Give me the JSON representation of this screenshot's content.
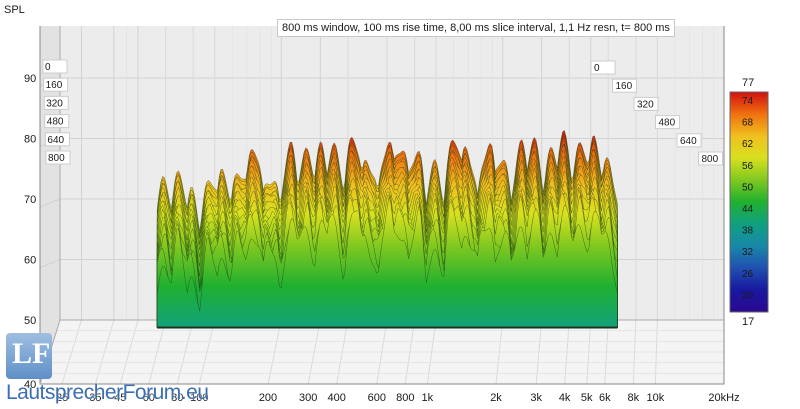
{
  "chart_data": {
    "type": "waterfall",
    "title": "800 ms window, 100 ms rise time, 8,00 ms slice interval, 1,1 Hz resn, t= 800 ms",
    "ylabel": "SPL",
    "xunit": "kHz",
    "yticks": [
      "90",
      "80",
      "70",
      "60",
      "50",
      "40"
    ],
    "ylim": [
      40,
      95
    ],
    "xticks": [
      "25",
      "35",
      "45",
      "60",
      "80",
      "100",
      "200",
      "300",
      "400",
      "600",
      "800",
      "1k",
      "2k",
      "3k",
      "4k",
      "5k",
      "6k",
      "8k",
      "10k",
      "20kHz"
    ],
    "time_ticks_left": [
      "0",
      "160",
      "320",
      "480",
      "640",
      "800"
    ],
    "time_ticks_right": [
      "0",
      "160",
      "320",
      "480",
      "640",
      "800"
    ],
    "colorbar": {
      "max_label": "77",
      "min_label": "17",
      "ticks": [
        "74",
        "68",
        "62",
        "56",
        "50",
        "44",
        "38",
        "32",
        "26",
        "20"
      ],
      "colors": [
        "#d01010",
        "#f07010",
        "#f0c020",
        "#d8e020",
        "#80c820",
        "#20b030",
        "#10a080",
        "#1888a8",
        "#2050b0",
        "#1818a0",
        "#2a0890"
      ]
    },
    "freq_range_hz": [
      20,
      20000
    ],
    "peaks": [
      {
        "f": 60,
        "spl": 73.5
      },
      {
        "f": 68,
        "spl": 74
      },
      {
        "f": 80,
        "spl": 70
      },
      {
        "f": 95,
        "spl": 74
      },
      {
        "f": 110,
        "spl": 73
      },
      {
        "f": 130,
        "spl": 76
      },
      {
        "f": 150,
        "spl": 77
      },
      {
        "f": 180,
        "spl": 75
      },
      {
        "f": 220,
        "spl": 77
      },
      {
        "f": 260,
        "spl": 79
      },
      {
        "f": 300,
        "spl": 77
      },
      {
        "f": 350,
        "spl": 79
      },
      {
        "f": 420,
        "spl": 79
      },
      {
        "f": 500,
        "spl": 77
      },
      {
        "f": 600,
        "spl": 78
      },
      {
        "f": 700,
        "spl": 79
      },
      {
        "f": 800,
        "spl": 78
      },
      {
        "f": 1000,
        "spl": 76
      },
      {
        "f": 1200,
        "spl": 79
      },
      {
        "f": 1400,
        "spl": 78
      },
      {
        "f": 1700,
        "spl": 78
      },
      {
        "f": 2000,
        "spl": 77
      },
      {
        "f": 2400,
        "spl": 78
      },
      {
        "f": 2800,
        "spl": 79
      },
      {
        "f": 3300,
        "spl": 78
      },
      {
        "f": 3800,
        "spl": 79
      },
      {
        "f": 4500,
        "spl": 80
      },
      {
        "f": 5200,
        "spl": 78
      },
      {
        "f": 6000,
        "spl": 77
      }
    ]
  },
  "watermark": {
    "logo_letters": "LF",
    "text": "LautsprecherForum.eu"
  }
}
